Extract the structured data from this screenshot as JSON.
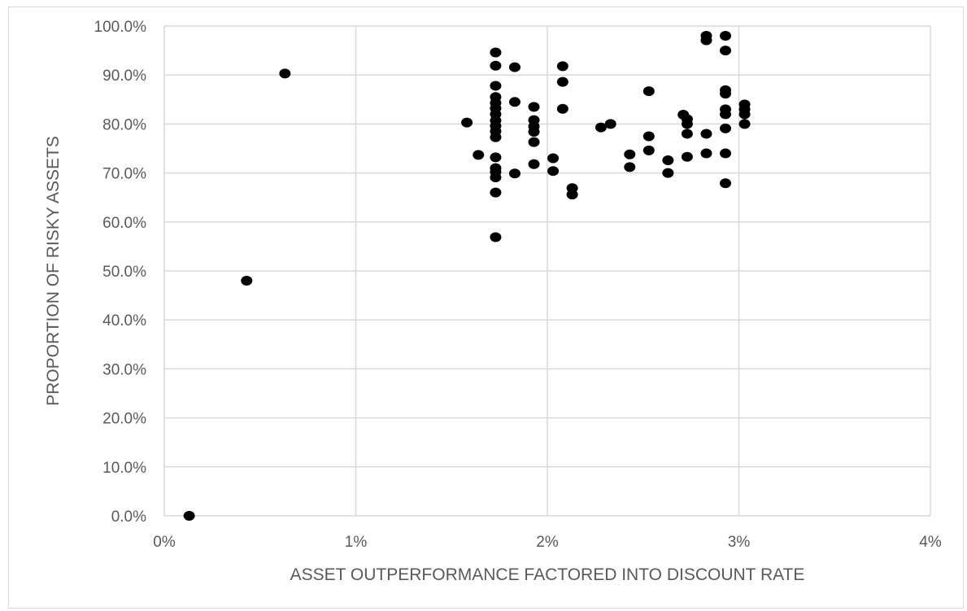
{
  "chart_data": {
    "type": "scatter",
    "xlabel": "ASSET OUTPERFORMANCE FACTORED INTO DISCOUNT RATE",
    "ylabel": "PROPORTION OF RISKY ASSETS",
    "xlim": [
      0,
      4
    ],
    "ylim": [
      0,
      100
    ],
    "x_ticks": [
      "0%",
      "1%",
      "2%",
      "3%",
      "4%"
    ],
    "y_ticks": [
      "0.0%",
      "10.0%",
      "20.0%",
      "30.0%",
      "40.0%",
      "50.0%",
      "60.0%",
      "70.0%",
      "80.0%",
      "90.0%",
      "100.0%"
    ],
    "grid": true,
    "legend": "none",
    "marker_color": "#000000",
    "gridline_color": "#d9d9d9",
    "series": [
      {
        "points": [
          [
            0.13,
            0.0
          ],
          [
            0.43,
            48.0
          ],
          [
            0.63,
            90.3
          ],
          [
            1.58,
            80.3
          ],
          [
            1.64,
            73.7
          ],
          [
            1.73,
            94.6
          ],
          [
            1.73,
            91.9
          ],
          [
            1.73,
            87.8
          ],
          [
            1.73,
            85.5
          ],
          [
            1.73,
            84.3
          ],
          [
            1.73,
            83.2
          ],
          [
            1.73,
            82.0
          ],
          [
            1.73,
            80.7
          ],
          [
            1.73,
            79.6
          ],
          [
            1.73,
            78.5
          ],
          [
            1.73,
            77.3
          ],
          [
            1.73,
            73.2
          ],
          [
            1.73,
            71.0
          ],
          [
            1.73,
            70.2
          ],
          [
            1.73,
            69.1
          ],
          [
            1.73,
            66.0
          ],
          [
            1.73,
            56.9
          ],
          [
            1.83,
            91.6
          ],
          [
            1.83,
            84.5
          ],
          [
            1.83,
            69.9
          ],
          [
            1.93,
            83.5
          ],
          [
            1.93,
            80.8
          ],
          [
            1.93,
            79.5
          ],
          [
            1.93,
            78.4
          ],
          [
            1.93,
            76.3
          ],
          [
            1.93,
            71.8
          ],
          [
            2.03,
            73.0
          ],
          [
            2.03,
            70.4
          ],
          [
            2.08,
            91.8
          ],
          [
            2.08,
            88.6
          ],
          [
            2.08,
            83.1
          ],
          [
            2.13,
            66.9
          ],
          [
            2.13,
            65.6
          ],
          [
            2.28,
            79.3
          ],
          [
            2.33,
            80.0
          ],
          [
            2.43,
            73.8
          ],
          [
            2.43,
            71.2
          ],
          [
            2.53,
            86.7
          ],
          [
            2.53,
            77.5
          ],
          [
            2.53,
            74.6
          ],
          [
            2.63,
            72.6
          ],
          [
            2.63,
            70.0
          ],
          [
            2.71,
            81.9
          ],
          [
            2.73,
            81.0
          ],
          [
            2.73,
            80.0
          ],
          [
            2.73,
            78.0
          ],
          [
            2.73,
            73.3
          ],
          [
            2.83,
            98.0
          ],
          [
            2.83,
            97.1
          ],
          [
            2.83,
            78.0
          ],
          [
            2.83,
            74.0
          ],
          [
            2.93,
            98.0
          ],
          [
            2.93,
            95.0
          ],
          [
            2.93,
            86.9
          ],
          [
            2.93,
            86.2
          ],
          [
            2.93,
            83.0
          ],
          [
            2.93,
            82.0
          ],
          [
            2.93,
            79.1
          ],
          [
            2.93,
            74.0
          ],
          [
            2.93,
            67.9
          ],
          [
            3.03,
            84.0
          ],
          [
            3.03,
            83.0
          ],
          [
            3.03,
            82.0
          ],
          [
            3.03,
            80.0
          ]
        ]
      }
    ]
  }
}
